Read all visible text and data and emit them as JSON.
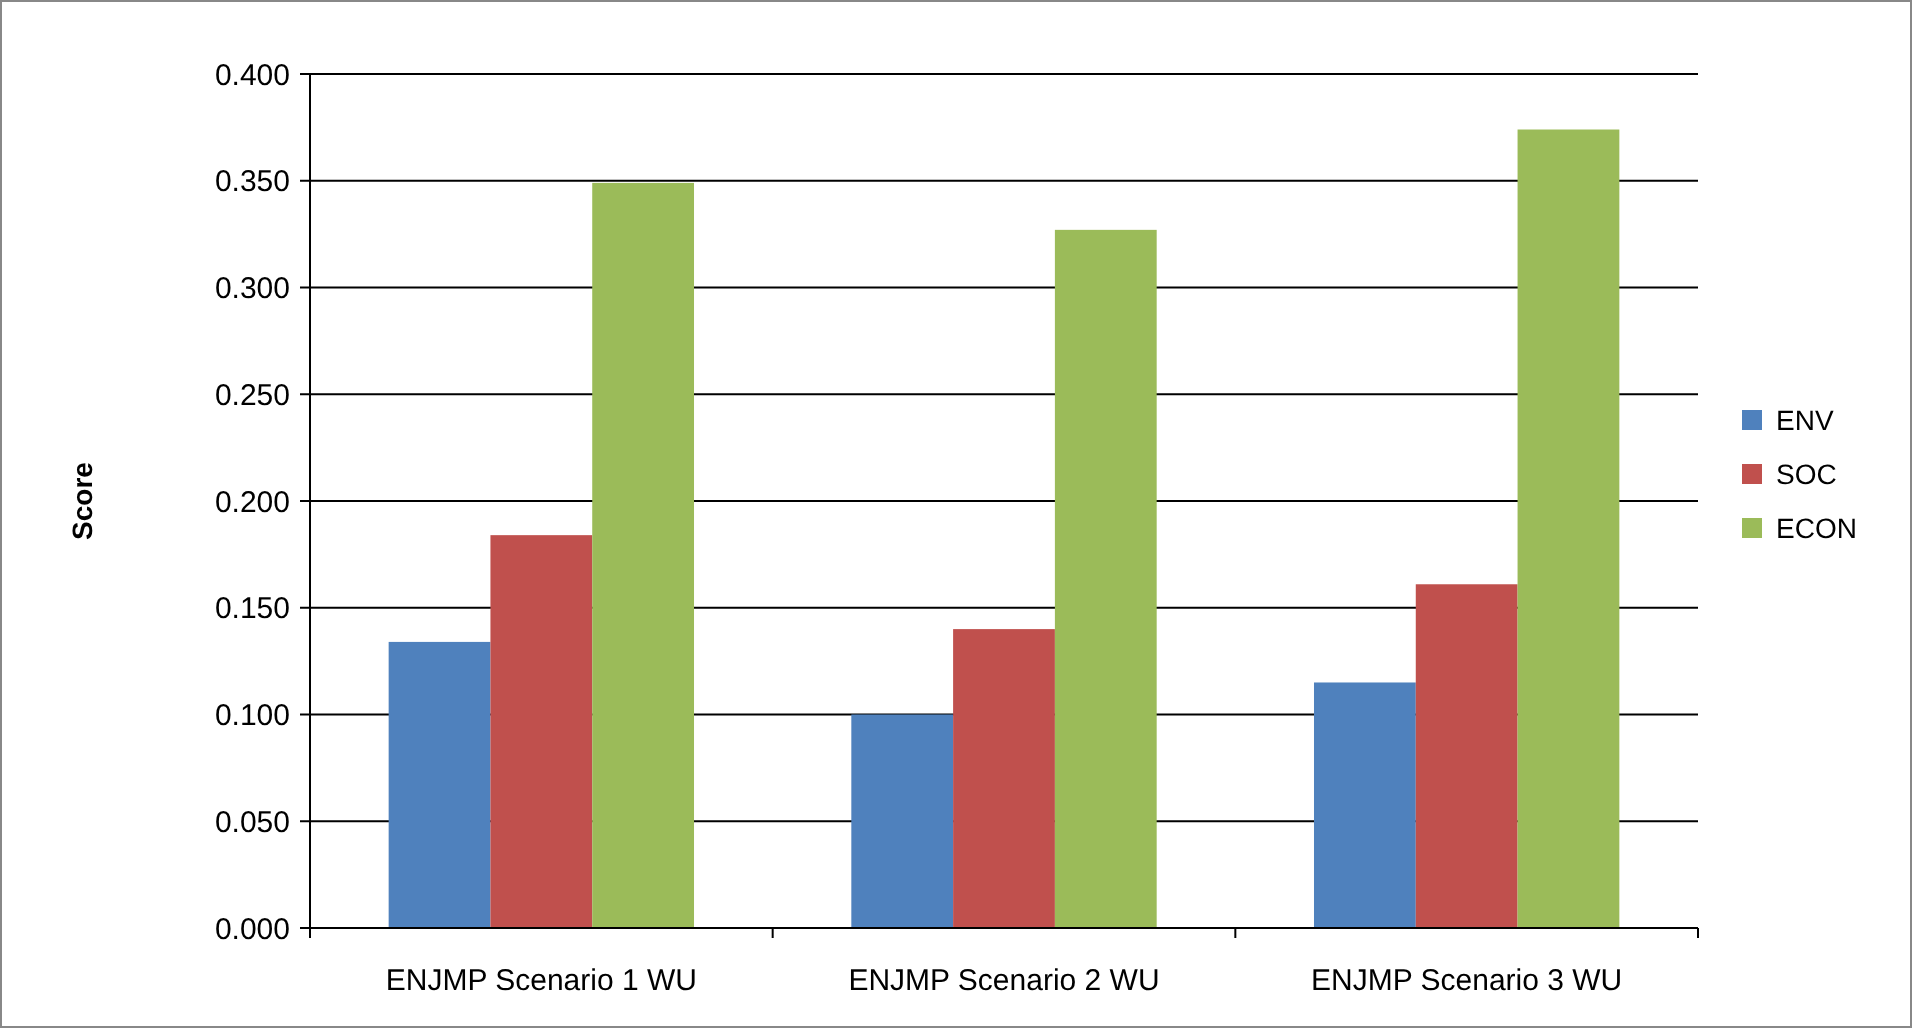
{
  "chart_data": {
    "type": "bar",
    "ylabel": "Score",
    "categories": [
      "ENJMP Scenario 1 WU",
      "ENJMP Scenario 2 WU",
      "ENJMP Scenario 3 WU"
    ],
    "series": [
      {
        "name": "ENV",
        "color": "#4f81bd",
        "values": [
          0.134,
          0.1,
          0.115
        ]
      },
      {
        "name": "SOC",
        "color": "#c0504d",
        "values": [
          0.184,
          0.14,
          0.161
        ]
      },
      {
        "name": "ECON",
        "color": "#9bbb59",
        "values": [
          0.349,
          0.327,
          0.374
        ]
      }
    ],
    "ylim": [
      0,
      0.4
    ],
    "yticks": [
      {
        "value": 0,
        "label": "0.000"
      },
      {
        "value": 0.05,
        "label": "0.050"
      },
      {
        "value": 0.1,
        "label": "0.100"
      },
      {
        "value": 0.15,
        "label": "0.150"
      },
      {
        "value": 0.2,
        "label": "0.200"
      },
      {
        "value": 0.25,
        "label": "0.250"
      },
      {
        "value": 0.3,
        "label": "0.300"
      },
      {
        "value": 0.35,
        "label": "0.350"
      },
      {
        "value": 0.4,
        "label": "0.400"
      }
    ],
    "grid": "y",
    "legend": "right"
  }
}
